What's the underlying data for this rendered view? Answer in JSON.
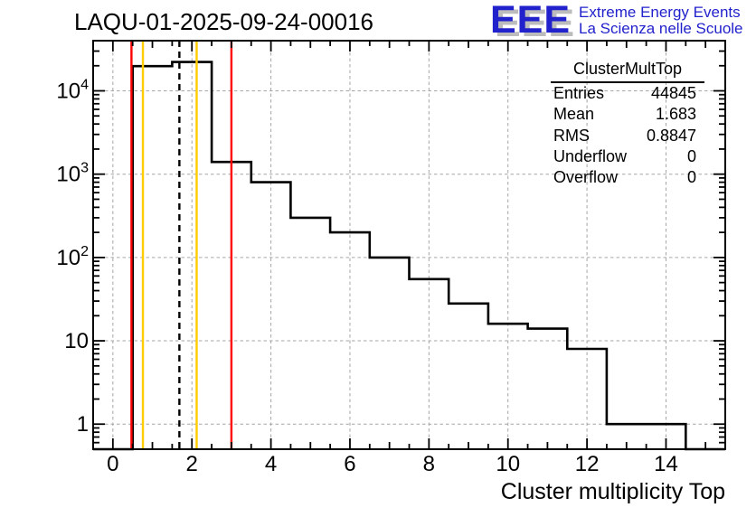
{
  "header": {
    "title": "LAQU-01-2025-09-24-00016",
    "logo": {
      "acronym": "EEE",
      "line1": "Extreme Energy Events",
      "line2": "La Scienza nelle Scuole",
      "text_color": "#2222cc",
      "shadow_color": "#bcbcbc"
    }
  },
  "stats_box": {
    "title": "ClusterMultTop",
    "rows": [
      {
        "label": "Entries",
        "value": "44845"
      },
      {
        "label": "Mean",
        "value": "1.683"
      },
      {
        "label": "RMS",
        "value": "0.8847"
      },
      {
        "label": "Underflow",
        "value": "0"
      },
      {
        "label": "Overflow",
        "value": "0"
      }
    ]
  },
  "chart_data": {
    "type": "bar",
    "subtype": "root-step-histogram",
    "title": "LAQU-01-2025-09-24-00016",
    "xlabel": "Cluster multiplicity Top",
    "ylabel": "",
    "x_range": [
      -0.5,
      15.5
    ],
    "y_range": [
      0.5,
      40000
    ],
    "y_scale": "log",
    "bin_width": 1,
    "bin_centers": [
      0,
      1,
      2,
      3,
      4,
      5,
      6,
      7,
      8,
      9,
      10,
      11,
      12,
      13,
      14,
      15
    ],
    "values": [
      0,
      19800,
      22200,
      1400,
      800,
      300,
      200,
      100,
      55,
      28,
      16,
      14,
      8,
      1,
      1,
      0
    ],
    "x_major_ticks": [
      0,
      2,
      4,
      6,
      8,
      10,
      12,
      14
    ],
    "y_major_ticks": [
      1,
      10,
      100,
      1000,
      10000
    ],
    "y_tick_labels": [
      "1",
      "10",
      "10^2",
      "10^3",
      "10^4"
    ],
    "grid": {
      "show": true,
      "style": "dashed",
      "color": "#a6a6a6"
    },
    "line_color": "#000000",
    "frame_color": "#000000",
    "marker_lines": [
      {
        "name": "red-low",
        "x": 0.47,
        "color": "#ff0000",
        "style": "solid"
      },
      {
        "name": "yellow-low",
        "x": 0.76,
        "color": "#ffcc00",
        "style": "solid"
      },
      {
        "name": "mean-dashed",
        "x": 1.683,
        "color": "#000000",
        "style": "dashed"
      },
      {
        "name": "yellow-high",
        "x": 2.12,
        "color": "#ffcc00",
        "style": "solid"
      },
      {
        "name": "red-high",
        "x": 3.0,
        "color": "#ff0000",
        "style": "solid"
      }
    ]
  }
}
